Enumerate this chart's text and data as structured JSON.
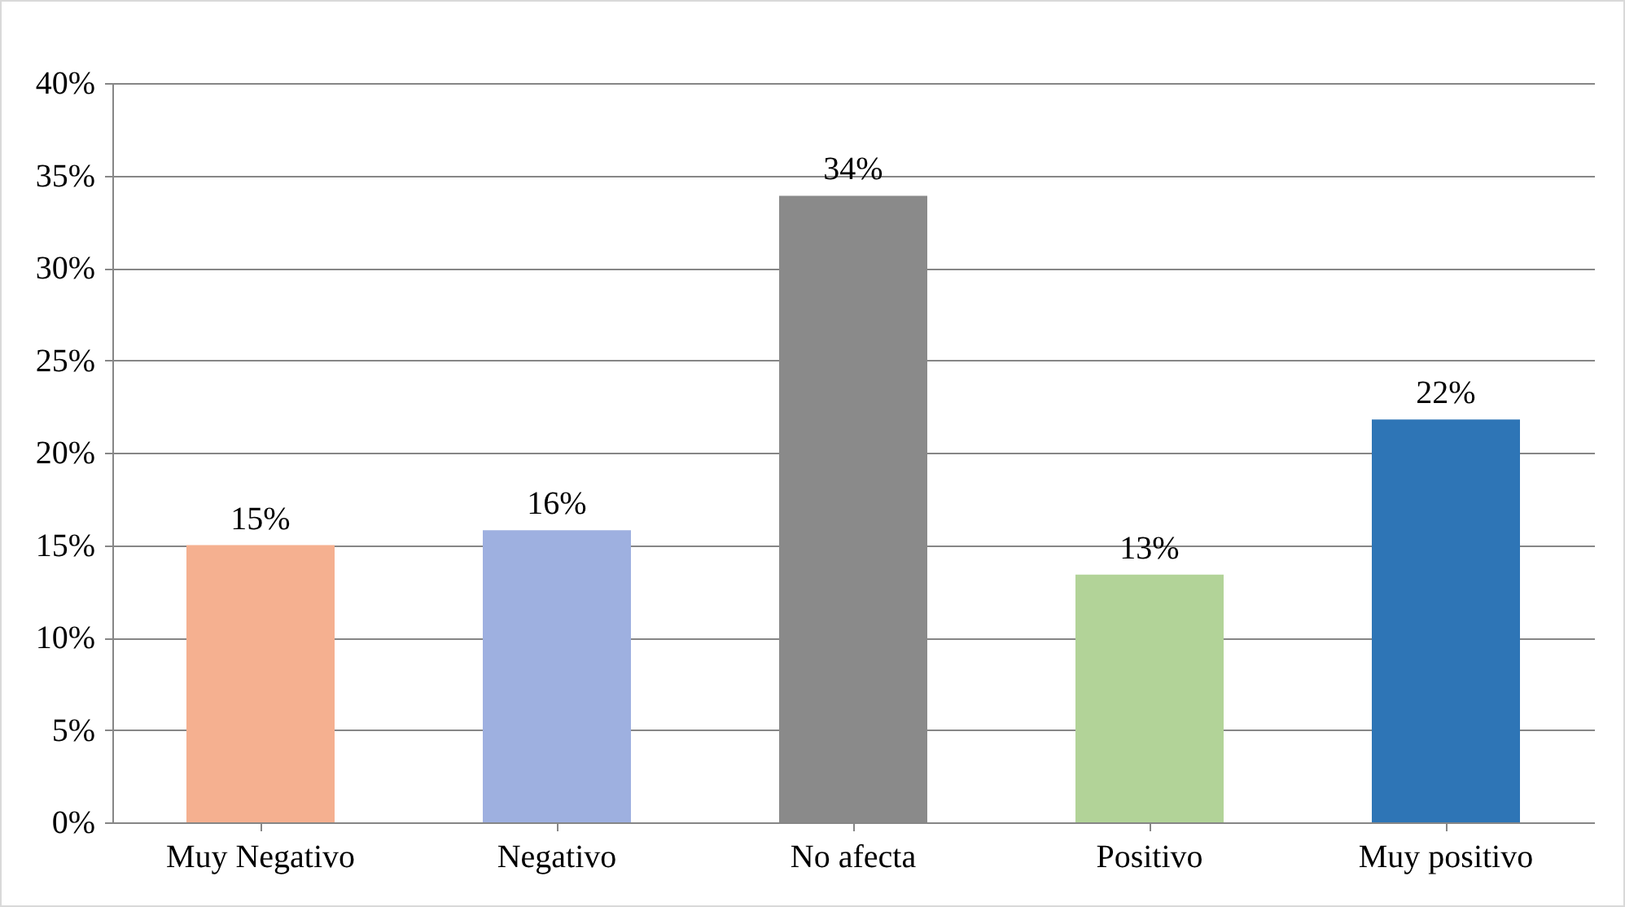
{
  "chart_data": {
    "type": "bar",
    "categories": [
      "Muy Negativo",
      "Negativo",
      "No afecta",
      "Positivo",
      "Muy positivo"
    ],
    "values": [
      15,
      15.8,
      33.9,
      13.4,
      21.8
    ],
    "colors": [
      "#f5b090",
      "#9eb0e0",
      "#8a8a8a",
      "#b2d398",
      "#2e75b6"
    ],
    "value_labels": [
      "15%",
      "16%",
      "34%",
      "13%",
      "22%"
    ],
    "ylim": [
      0,
      40
    ],
    "yticks": [
      {
        "value": 0,
        "label": "0%"
      },
      {
        "value": 5,
        "label": "5%"
      },
      {
        "value": 10,
        "label": "10%"
      },
      {
        "value": 15,
        "label": "15%"
      },
      {
        "value": 20,
        "label": "20%"
      },
      {
        "value": 25,
        "label": "25%"
      },
      {
        "value": 30,
        "label": "30%"
      },
      {
        "value": 35,
        "label": "35%"
      },
      {
        "value": 40,
        "label": "40%"
      }
    ],
    "grid": "y"
  }
}
